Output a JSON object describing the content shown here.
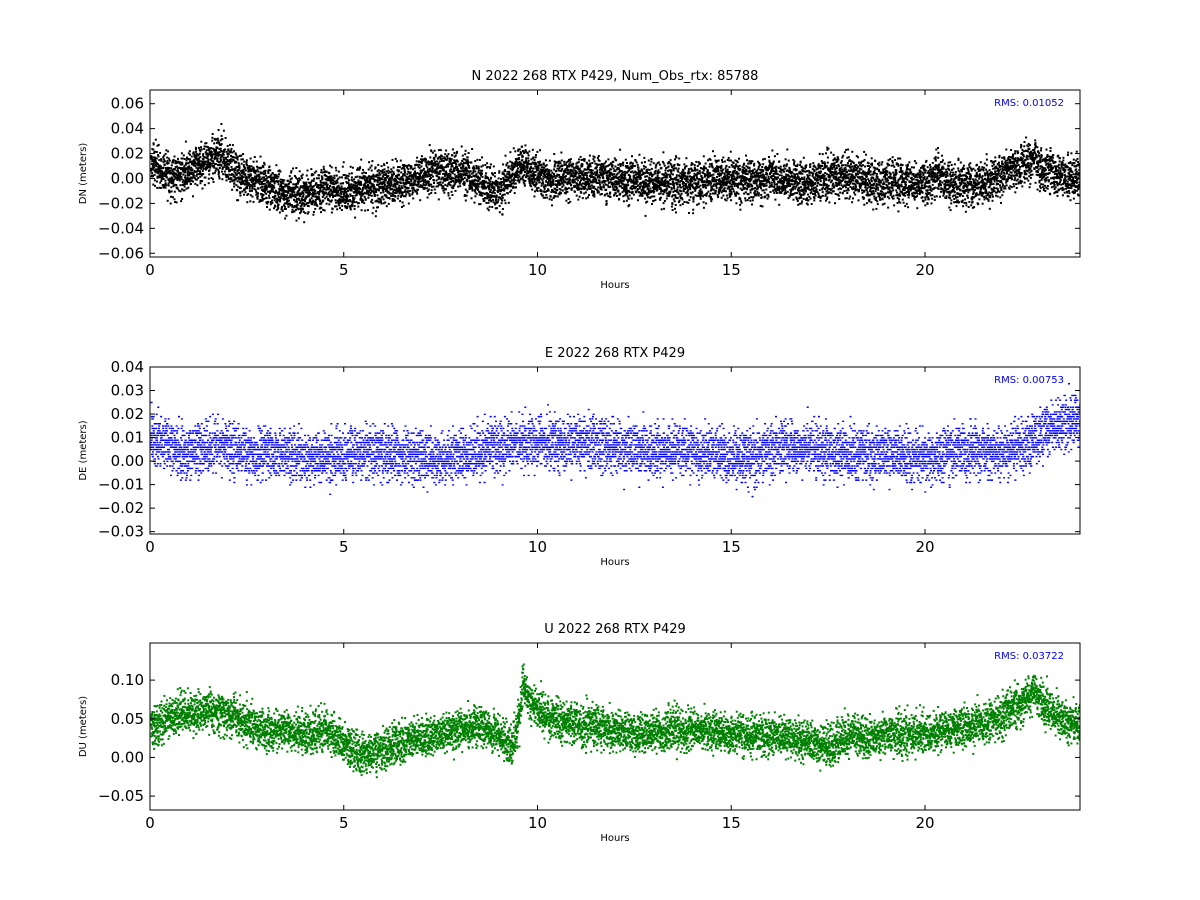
{
  "figure": {
    "background": "#ffffff"
  },
  "chart_data": [
    {
      "type": "scatter",
      "title": "N 2022 268 RTX  P429, Num_Obs_rtx: 85788",
      "xlabel": "Hours",
      "ylabel": "DN (meters)",
      "xlim": [
        0,
        24
      ],
      "ylim": [
        -0.063,
        0.071
      ],
      "xticks": [
        0,
        5,
        10,
        15,
        20
      ],
      "xticklabels": [
        "0",
        "5",
        "10",
        "15",
        "20"
      ],
      "yticks": [
        -0.06,
        -0.04,
        -0.02,
        0.0,
        0.02,
        0.04,
        0.06
      ],
      "yticklabels": [
        "−0.06",
        "−0.04",
        "−0.02",
        "0.00",
        "0.02",
        "0.04",
        "0.06"
      ],
      "annotation": "RMS:  0.01052",
      "annotation_color": "#0000ff",
      "color": "#000000",
      "grid": false,
      "num_points_described": 85788,
      "trend": {
        "x": [
          0,
          0.5,
          1.0,
          1.5,
          1.8,
          2.2,
          2.6,
          3.0,
          3.5,
          4.0,
          4.5,
          5.0,
          5.5,
          6.0,
          6.5,
          7.0,
          7.5,
          8.0,
          8.5,
          9.0,
          9.3,
          9.6,
          9.9,
          10.3,
          10.8,
          11.5,
          12.0,
          12.5,
          13.0,
          13.5,
          14.0,
          14.5,
          15.0,
          15.5,
          16.0,
          16.5,
          17.0,
          17.5,
          18.0,
          18.5,
          19.0,
          19.5,
          20.0,
          20.3,
          20.6,
          21.0,
          21.5,
          22.0,
          22.5,
          22.8,
          23.0,
          23.5,
          24.0
        ],
        "y": [
          0.012,
          0.002,
          0.006,
          0.014,
          0.02,
          0.004,
          0.0,
          -0.005,
          -0.014,
          -0.012,
          -0.008,
          -0.012,
          -0.006,
          -0.006,
          -0.003,
          0.002,
          0.006,
          0.004,
          -0.003,
          -0.012,
          0.004,
          0.012,
          0.004,
          -0.003,
          0.002,
          0.001,
          0.0,
          -0.003,
          -0.003,
          -0.004,
          -0.002,
          -0.001,
          0.0,
          -0.002,
          0.001,
          -0.002,
          -0.004,
          0.002,
          0.003,
          -0.002,
          -0.003,
          -0.004,
          -0.005,
          0.005,
          -0.004,
          -0.006,
          -0.004,
          0.002,
          0.012,
          0.015,
          0.006,
          0.001,
          0.001
        ]
      },
      "spread_std": 0.0085
    },
    {
      "type": "scatter",
      "title": "E 2022 268 RTX  P429",
      "xlabel": "Hours",
      "ylabel": "DE (meters)",
      "xlim": [
        0,
        24
      ],
      "ylim": [
        -0.031,
        0.04
      ],
      "xticks": [
        0,
        5,
        10,
        15,
        20
      ],
      "xticklabels": [
        "0",
        "5",
        "10",
        "15",
        "20"
      ],
      "yticks": [
        -0.03,
        -0.02,
        -0.01,
        0.0,
        0.01,
        0.02,
        0.03,
        0.04
      ],
      "yticklabels": [
        "−0.03",
        "−0.02",
        "−0.01",
        "0.00",
        "0.01",
        "0.02",
        "0.03",
        "0.04"
      ],
      "annotation": "RMS:  0.00753",
      "annotation_color": "#0000ff",
      "color": "#0000ff",
      "grid": false,
      "trend": {
        "x": [
          0,
          0.5,
          1.0,
          1.5,
          2.0,
          2.5,
          3.0,
          3.5,
          4.0,
          4.5,
          5.0,
          5.5,
          6.0,
          6.5,
          7.0,
          7.5,
          8.0,
          8.5,
          9.0,
          9.5,
          10.0,
          10.5,
          11.0,
          11.5,
          12.0,
          12.5,
          13.0,
          13.5,
          14.0,
          14.5,
          15.0,
          15.5,
          16.0,
          16.5,
          17.0,
          17.5,
          18.0,
          18.5,
          19.0,
          19.5,
          20.0,
          20.5,
          21.0,
          21.5,
          22.0,
          22.5,
          23.0,
          23.5,
          24.0
        ],
        "y": [
          0.009,
          0.006,
          0.004,
          0.006,
          0.007,
          0.004,
          0.004,
          0.003,
          0.002,
          0.002,
          0.003,
          0.004,
          0.004,
          0.003,
          0.002,
          0.001,
          0.002,
          0.004,
          0.006,
          0.008,
          0.008,
          0.008,
          0.008,
          0.007,
          0.006,
          0.005,
          0.005,
          0.005,
          0.004,
          0.003,
          0.002,
          0.002,
          0.005,
          0.006,
          0.006,
          0.004,
          0.003,
          0.003,
          0.003,
          0.002,
          0.001,
          0.003,
          0.005,
          0.004,
          0.004,
          0.006,
          0.012,
          0.016,
          0.018
        ]
      },
      "spread_std": 0.0055
    },
    {
      "type": "scatter",
      "title": "U 2022 268 RTX  P429",
      "xlabel": "Hours",
      "ylabel": "DU (meters)",
      "xlim": [
        0,
        24
      ],
      "ylim": [
        -0.068,
        0.148
      ],
      "xticks": [
        0,
        5,
        10,
        15,
        20
      ],
      "xticklabels": [
        "0",
        "5",
        "10",
        "15",
        "20"
      ],
      "yticks": [
        -0.05,
        0.0,
        0.05,
        0.1
      ],
      "yticklabels": [
        "−0.05",
        "0.00",
        "0.05",
        "0.10"
      ],
      "annotation": "RMS:  0.03722",
      "annotation_color": "#0000ff",
      "color": "#008000",
      "grid": false,
      "trend": {
        "x": [
          0,
          0.5,
          1.0,
          1.5,
          2.0,
          2.5,
          3.0,
          3.5,
          4.0,
          4.5,
          5.0,
          5.5,
          6.0,
          6.5,
          7.0,
          7.5,
          8.0,
          8.5,
          9.0,
          9.3,
          9.5,
          9.6,
          9.8,
          10.2,
          10.8,
          11.5,
          12.0,
          12.5,
          13.0,
          13.5,
          14.0,
          14.5,
          15.0,
          15.5,
          16.0,
          16.5,
          17.0,
          17.5,
          18.0,
          18.5,
          19.0,
          19.5,
          20.0,
          20.5,
          21.0,
          21.5,
          22.0,
          22.5,
          22.8,
          23.0,
          23.5,
          24.0
        ],
        "y": [
          0.04,
          0.052,
          0.058,
          0.06,
          0.055,
          0.045,
          0.035,
          0.038,
          0.03,
          0.035,
          0.015,
          0.005,
          0.012,
          0.02,
          0.025,
          0.03,
          0.035,
          0.04,
          0.03,
          0.015,
          0.045,
          0.095,
          0.07,
          0.05,
          0.045,
          0.04,
          0.035,
          0.03,
          0.032,
          0.035,
          0.035,
          0.033,
          0.03,
          0.028,
          0.028,
          0.025,
          0.02,
          0.015,
          0.03,
          0.025,
          0.028,
          0.03,
          0.032,
          0.035,
          0.04,
          0.045,
          0.055,
          0.07,
          0.085,
          0.07,
          0.05,
          0.04
        ]
      },
      "spread_std": 0.013
    }
  ]
}
